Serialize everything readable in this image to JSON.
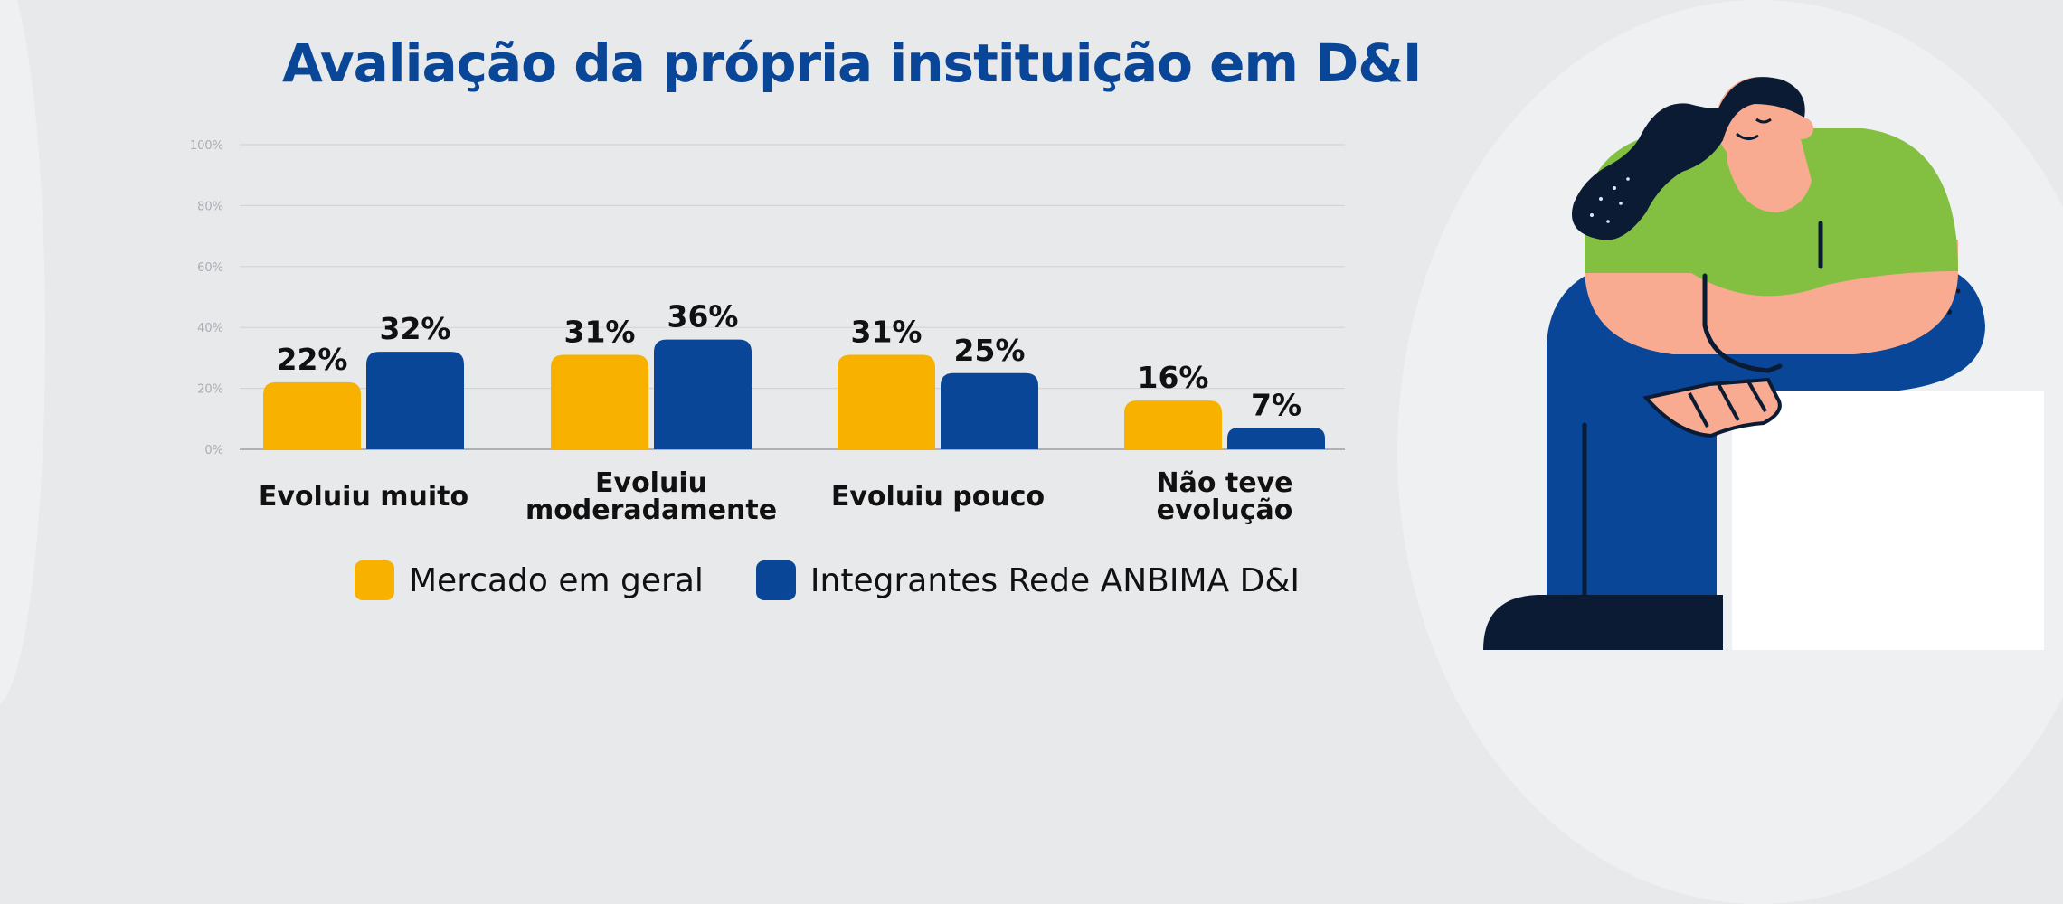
{
  "title": "Avaliação da própria instituição em D&I",
  "colors": {
    "mercado": "#f9b100",
    "rede": "#0a4697",
    "title": "#0a4697"
  },
  "legend": [
    {
      "label": "Mercado em geral",
      "color": "#f9b100"
    },
    {
      "label": "Integrantes Rede ANBIMA D&I",
      "color": "#0a4697"
    }
  ],
  "chart_data": {
    "type": "bar",
    "title": "Avaliação da própria instituição em D&I",
    "categories": [
      [
        "Evoluiu muito"
      ],
      [
        "Evoluiu",
        "moderadamente"
      ],
      [
        "Evoluiu pouco"
      ],
      [
        "Não teve",
        "evolução"
      ]
    ],
    "series": [
      {
        "name": "Mercado em geral",
        "values": [
          22,
          31,
          31,
          16
        ],
        "labels": [
          "22%",
          "31%",
          "31%",
          "16%"
        ]
      },
      {
        "name": "Integrantes Rede ANBIMA D&I",
        "values": [
          32,
          36,
          25,
          7
        ],
        "labels": [
          "32%",
          "36%",
          "25%",
          "7%"
        ]
      }
    ],
    "yticks": [
      "0%",
      "20%",
      "40%",
      "60%",
      "80%",
      "100%"
    ],
    "ylim": [
      0,
      100
    ],
    "grid": true,
    "legend_position": "bottom"
  }
}
